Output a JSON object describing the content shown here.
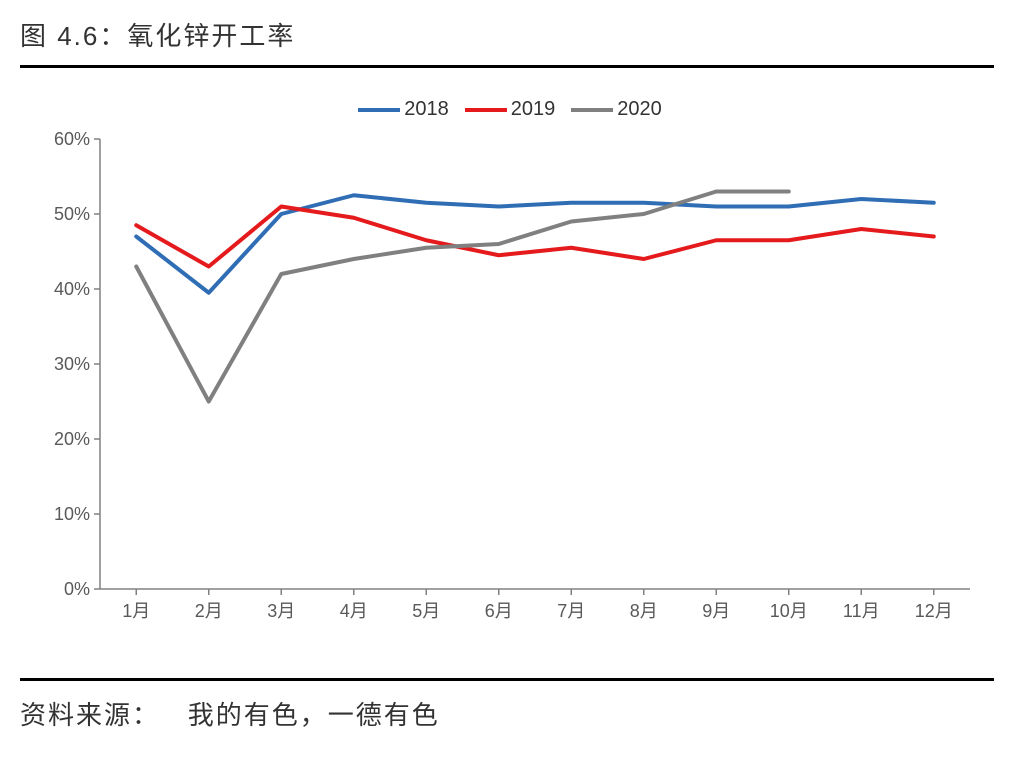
{
  "title": "图 4.6：氧化锌开工率",
  "source_label": "资料来源：",
  "source_value": "我的有色，一德有色",
  "chart": {
    "type": "line",
    "background_color": "#ffffff",
    "categories": [
      "1月",
      "2月",
      "3月",
      "4月",
      "5月",
      "6月",
      "7月",
      "8月",
      "9月",
      "10月",
      "11月",
      "12月"
    ],
    "y_axis": {
      "min": 0,
      "max": 60,
      "tick_step": 10,
      "format": "percent",
      "labels": [
        "0%",
        "10%",
        "20%",
        "30%",
        "40%",
        "50%",
        "60%"
      ],
      "axis_color": "#808080",
      "tick_fontsize": 18,
      "label_color": "#595959"
    },
    "x_axis": {
      "tick_fontsize": 18,
      "label_color": "#595959",
      "axis_color": "#808080"
    },
    "legend": {
      "position": "top",
      "fontsize": 20
    },
    "line_width": 4,
    "series": [
      {
        "name": "2018",
        "color": "#2f6db5",
        "values": [
          47.0,
          39.5,
          50.0,
          52.5,
          51.5,
          51.0,
          51.5,
          51.5,
          51.0,
          51.0,
          52.0,
          51.5
        ]
      },
      {
        "name": "2019",
        "color": "#e41a1c",
        "values": [
          48.5,
          43.0,
          51.0,
          49.5,
          46.5,
          44.5,
          45.5,
          44.0,
          46.5,
          46.5,
          48.0,
          47.0
        ]
      },
      {
        "name": "2020",
        "color": "#808080",
        "values": [
          43.0,
          25.0,
          42.0,
          44.0,
          45.5,
          46.0,
          49.0,
          50.0,
          53.0,
          53.0
        ]
      }
    ]
  }
}
